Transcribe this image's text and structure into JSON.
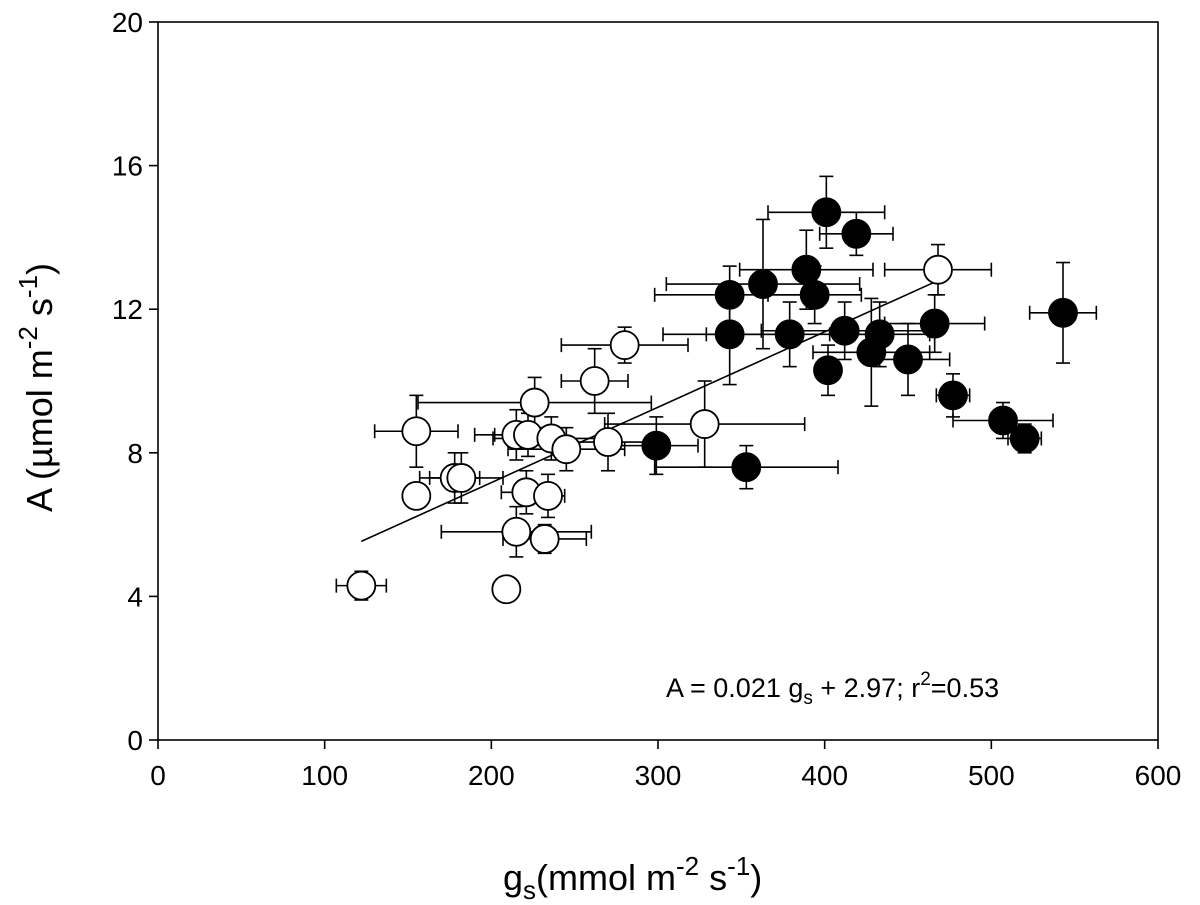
{
  "chart_data": {
    "type": "scatter",
    "title": "",
    "xlabel": {
      "main": "g",
      "sub": "s",
      "units_pre": "(mmol m",
      "sup1": "-2",
      "mid": " s",
      "sup2": "-1",
      "end": ")"
    },
    "ylabel": {
      "main": "A (µmol m",
      "sup1": "-2",
      "mid": " s",
      "sup2": "-1",
      "end": ")"
    },
    "xlim": [
      0,
      600
    ],
    "ylim": [
      0,
      20
    ],
    "xticks": [
      0,
      100,
      200,
      300,
      400,
      500,
      600
    ],
    "yticks": [
      0,
      4,
      8,
      12,
      16,
      20
    ],
    "xtick_labels": [
      "0",
      "100",
      "200",
      "300",
      "400",
      "500",
      "600"
    ],
    "ytick_labels": [
      "0",
      "4",
      "8",
      "12",
      "16",
      "20"
    ],
    "regression": {
      "slope": 0.021,
      "intercept": 2.97,
      "x_range": [
        122,
        468
      ]
    },
    "annotation": {
      "pre": "A = 0.021 g",
      "sub": "s",
      "mid": " + 2.97; r",
      "sup": "2",
      "end": "=0.53"
    },
    "series": [
      {
        "name": "open",
        "marker": "open-circle",
        "points": [
          {
            "x": 122,
            "y": 4.3,
            "xerr": 15,
            "yerr": 0.4
          },
          {
            "x": 155,
            "y": 8.6,
            "xerr": 25,
            "yerr": 1.0
          },
          {
            "x": 155,
            "y": 6.8,
            "xerr": 5,
            "yerr": 0.3
          },
          {
            "x": 178,
            "y": 7.3,
            "xerr": 15,
            "yerr": 0.7
          },
          {
            "x": 182,
            "y": 7.3,
            "xerr": 25,
            "yerr": 0.7
          },
          {
            "x": 209,
            "y": 4.2,
            "xerr": 5,
            "yerr": 0.3
          },
          {
            "x": 215,
            "y": 5.8,
            "xerr": 45,
            "yerr": 0.7
          },
          {
            "x": 215,
            "y": 8.5,
            "xerr": 25,
            "yerr": 0.7
          },
          {
            "x": 221,
            "y": 6.9,
            "xerr": 15,
            "yerr": 0.6
          },
          {
            "x": 222,
            "y": 8.5,
            "xerr": 20,
            "yerr": 0.6
          },
          {
            "x": 226,
            "y": 9.4,
            "xerr": 70,
            "yerr": 0.7
          },
          {
            "x": 232,
            "y": 5.6,
            "xerr": 25,
            "yerr": 0.4
          },
          {
            "x": 234,
            "y": 6.8,
            "xerr": 10,
            "yerr": 0.6
          },
          {
            "x": 236,
            "y": 8.4,
            "xerr": 35,
            "yerr": 0.6
          },
          {
            "x": 245,
            "y": 8.1,
            "xerr": 35,
            "yerr": 0.6
          },
          {
            "x": 262,
            "y": 10.0,
            "xerr": 20,
            "yerr": 0.9
          },
          {
            "x": 270,
            "y": 8.3,
            "xerr": 25,
            "yerr": 0.8
          },
          {
            "x": 280,
            "y": 11.0,
            "xerr": 38,
            "yerr": 0.5
          },
          {
            "x": 328,
            "y": 8.8,
            "xerr": 60,
            "yerr": 1.2
          },
          {
            "x": 468,
            "y": 13.1,
            "xerr": 32,
            "yerr": 0.7
          }
        ]
      },
      {
        "name": "filled",
        "marker": "filled-circle",
        "points": [
          {
            "x": 299,
            "y": 8.2,
            "xerr": 25,
            "yerr": 0.8
          },
          {
            "x": 343,
            "y": 12.4,
            "xerr": 45,
            "yerr": 0.8
          },
          {
            "x": 343,
            "y": 11.3,
            "xerr": 40,
            "yerr": 1.4
          },
          {
            "x": 353,
            "y": 7.6,
            "xerr": 55,
            "yerr": 0.6
          },
          {
            "x": 363,
            "y": 12.7,
            "xerr": 58,
            "yerr": 1.8
          },
          {
            "x": 379,
            "y": 11.3,
            "xerr": 50,
            "yerr": 0.9
          },
          {
            "x": 389,
            "y": 13.1,
            "xerr": 40,
            "yerr": 1.1
          },
          {
            "x": 394,
            "y": 12.4,
            "xerr": 28,
            "yerr": 0.8
          },
          {
            "x": 401,
            "y": 14.7,
            "xerr": 35,
            "yerr": 1.0
          },
          {
            "x": 402,
            "y": 10.3,
            "xerr": 5,
            "yerr": 0.7
          },
          {
            "x": 412,
            "y": 11.4,
            "xerr": 50,
            "yerr": 0.8
          },
          {
            "x": 419,
            "y": 14.1,
            "xerr": 22,
            "yerr": 0.6
          },
          {
            "x": 428,
            "y": 10.8,
            "xerr": 35,
            "yerr": 1.5
          },
          {
            "x": 433,
            "y": 11.3,
            "xerr": 30,
            "yerr": 0.9
          },
          {
            "x": 450,
            "y": 10.6,
            "xerr": 25,
            "yerr": 1.0
          },
          {
            "x": 466,
            "y": 11.6,
            "xerr": 30,
            "yerr": 0.8
          },
          {
            "x": 477,
            "y": 9.6,
            "xerr": 10,
            "yerr": 0.6
          },
          {
            "x": 507,
            "y": 8.9,
            "xerr": 30,
            "yerr": 0.5
          },
          {
            "x": 520,
            "y": 8.4,
            "xerr": 10,
            "yerr": 0.4
          },
          {
            "x": 543,
            "y": 11.9,
            "xerr": 20,
            "yerr": 1.4
          }
        ]
      }
    ]
  }
}
